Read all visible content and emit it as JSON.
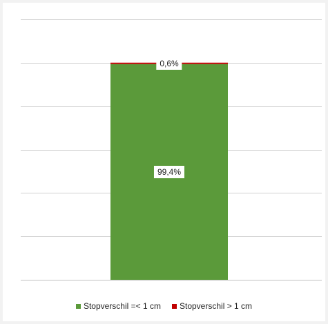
{
  "chart_data": {
    "type": "bar",
    "stacked": true,
    "categories": [
      ""
    ],
    "series": [
      {
        "name": "Stopverschil =< 1 cm",
        "values": [
          99.4
        ],
        "label": "99,4%",
        "color": "#5b9a3a"
      },
      {
        "name": "Stopverschil > 1 cm",
        "values": [
          0.6
        ],
        "label": "0,6%",
        "color": "#c00000"
      }
    ],
    "ylim": [
      0,
      100
    ],
    "grid": true,
    "legend_position": "bottom",
    "title": "",
    "xlabel": "",
    "ylabel": ""
  }
}
